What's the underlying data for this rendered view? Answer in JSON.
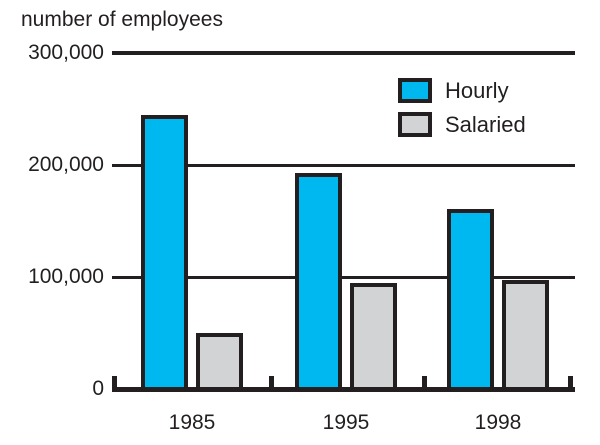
{
  "chart_data": {
    "type": "bar",
    "title": "number of employees",
    "categories": [
      "1985",
      "1995",
      "1998"
    ],
    "series": [
      {
        "name": "Hourly",
        "color": "#00b8f0",
        "values": [
          245000,
          193000,
          161000
        ]
      },
      {
        "name": "Salaried",
        "color": "#d1d3d4",
        "values": [
          50000,
          95000,
          97000
        ]
      }
    ],
    "xlabel": "",
    "ylabel": "number of employees",
    "ylim": [
      0,
      300000
    ],
    "yticks": [
      0,
      100000,
      200000,
      300000
    ],
    "ytick_labels": [
      "0",
      "100,000",
      "200,000",
      "300,000"
    ],
    "grid": "horizontal gridlines at each y tick",
    "legend_position": "top-right",
    "line_color": "#231f20",
    "background_color": "#ffffff"
  }
}
